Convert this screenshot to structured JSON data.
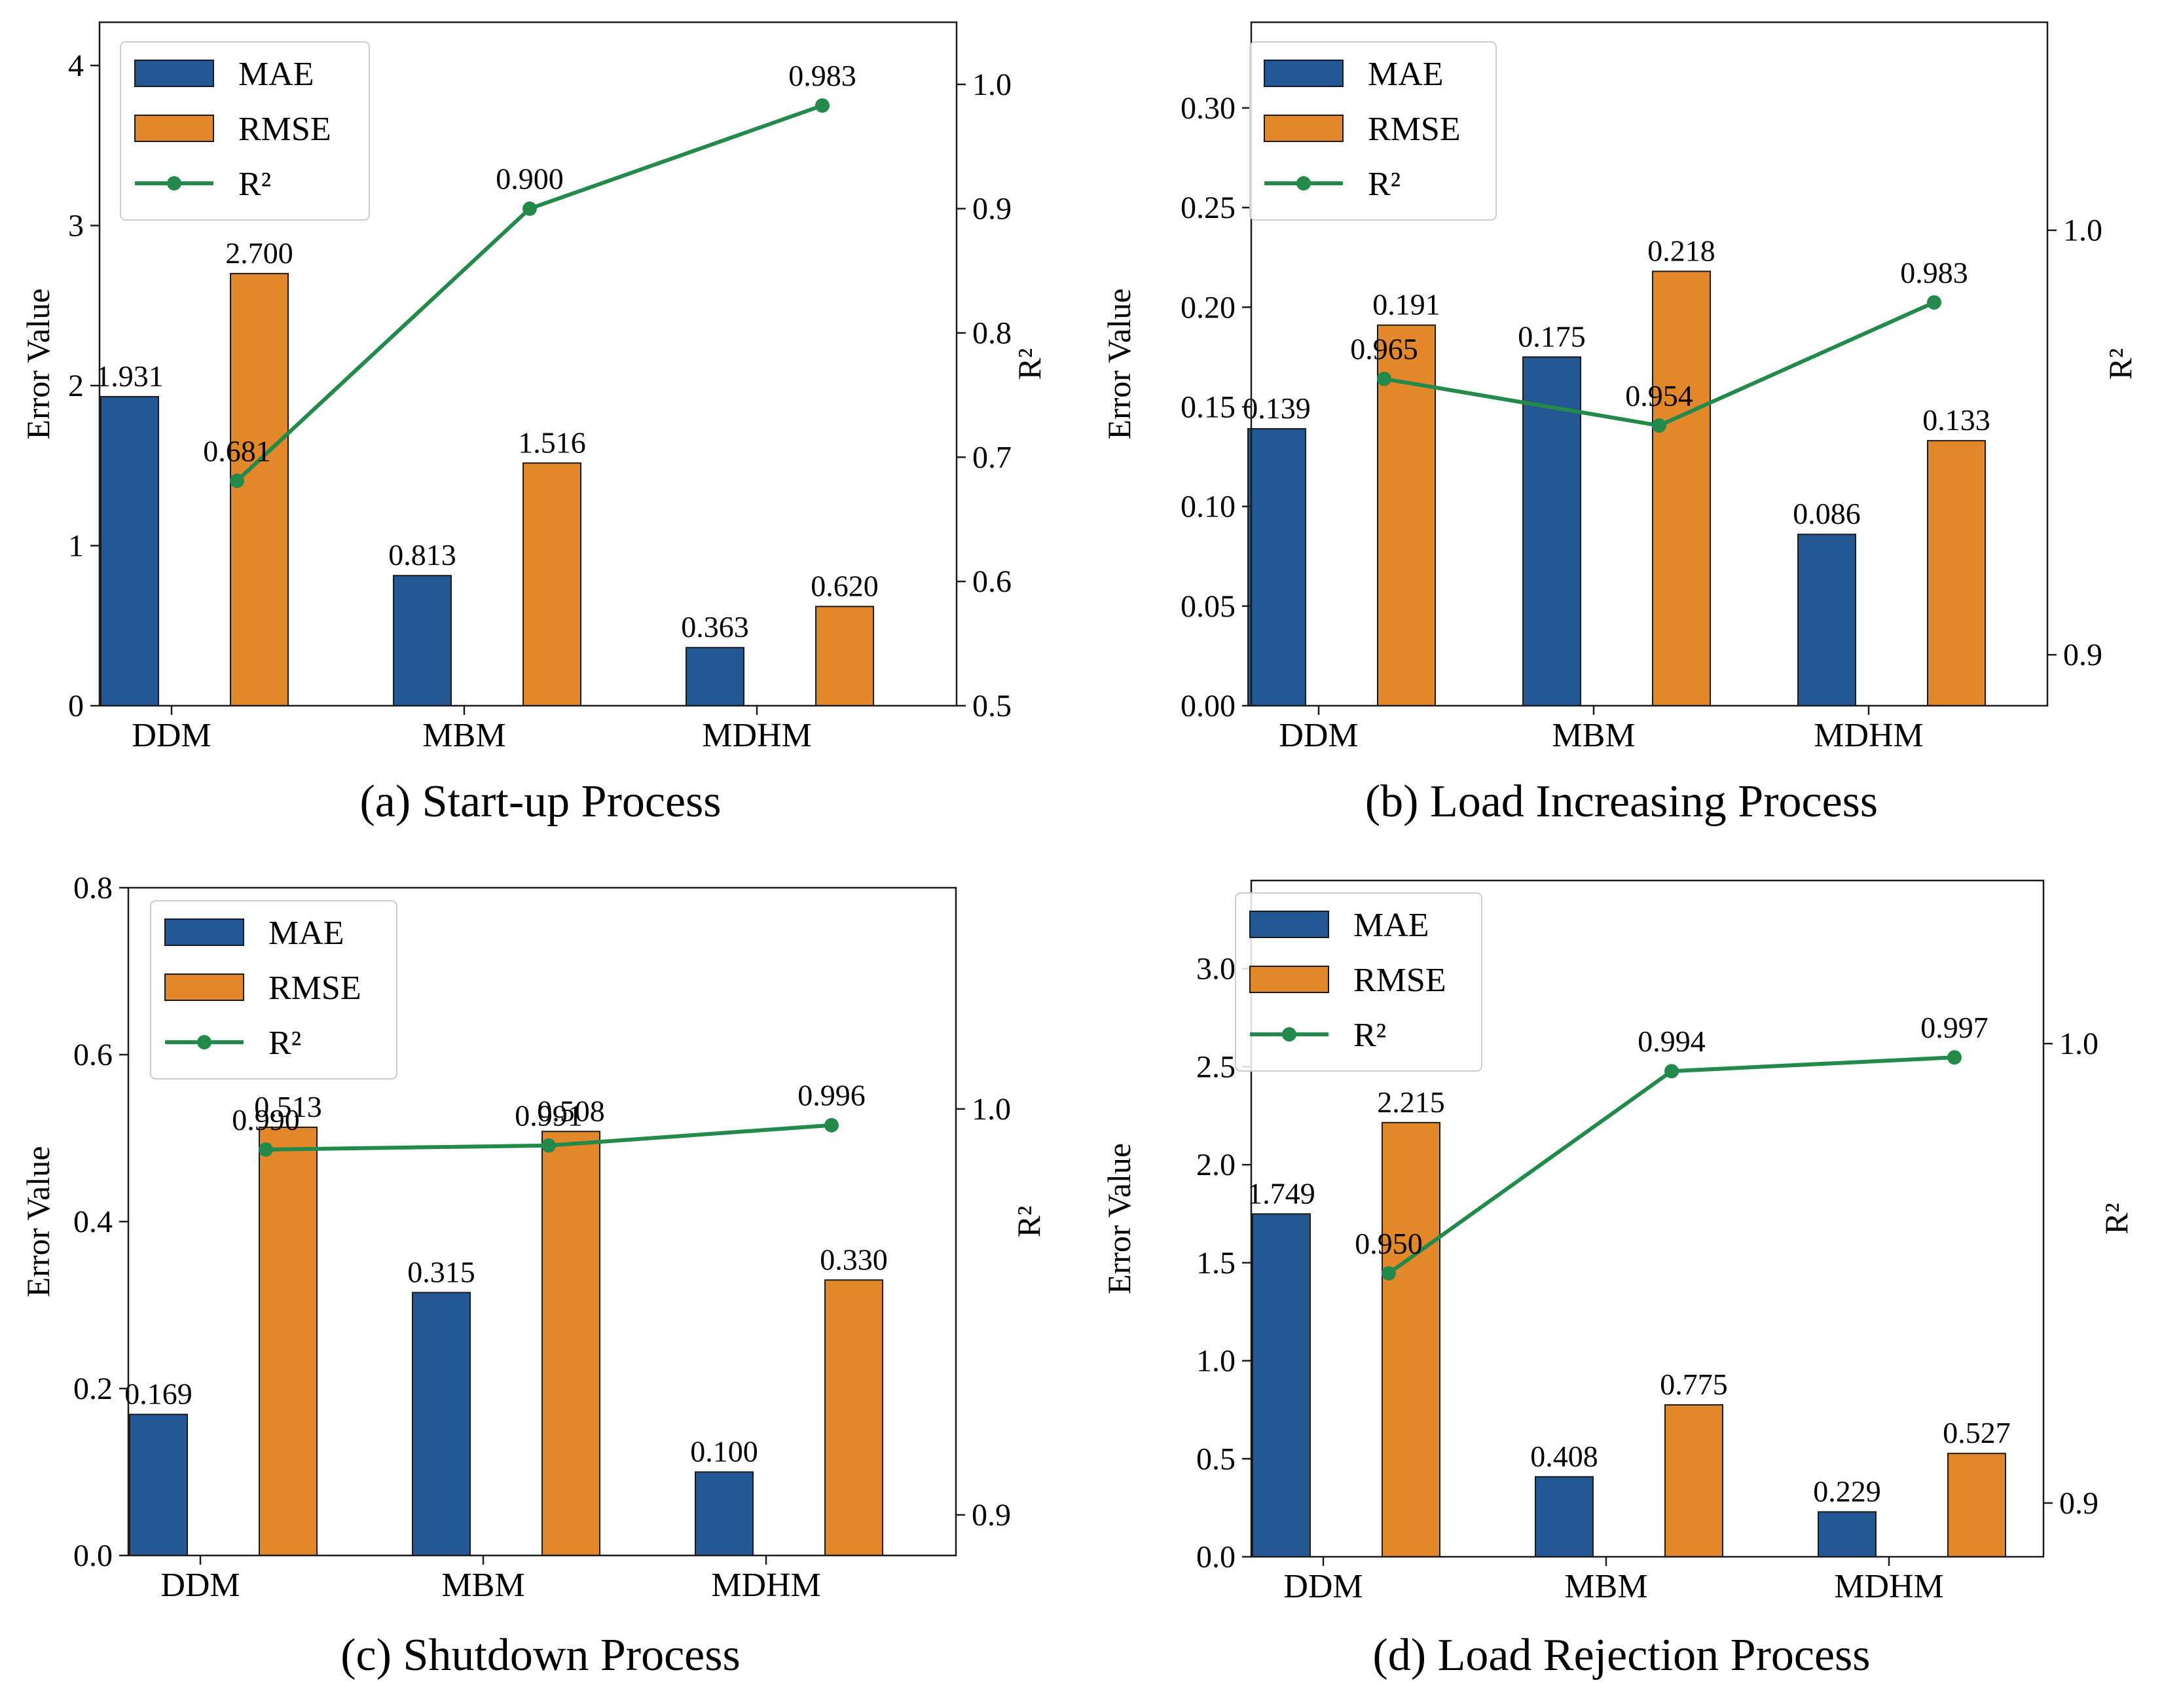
{
  "chart_data": [
    {
      "type": "bar",
      "title": "(a) Start-up Process",
      "categories": [
        "DDM",
        "MBM",
        "MDHM"
      ],
      "series": [
        {
          "name": "MAE",
          "axis": "left",
          "color": "#245894",
          "values": [
            1.931,
            0.813,
            0.363
          ],
          "labels": [
            "1.931",
            "0.813",
            "0.363"
          ]
        },
        {
          "name": "RMSE",
          "axis": "left",
          "color": "#e2882a",
          "values": [
            2.7,
            1.516,
            0.62
          ],
          "labels": [
            "2.700",
            "1.516",
            "0.620"
          ]
        },
        {
          "name": "R²",
          "type": "line",
          "axis": "right",
          "color": "#238a4c",
          "values": [
            0.681,
            0.9,
            0.983
          ],
          "labels": [
            "0.681",
            "0.900",
            "0.983"
          ]
        }
      ],
      "ylabel": "Error Value",
      "ylim": [
        0,
        4.27
      ],
      "yticks": [
        0,
        1,
        2,
        3,
        4
      ],
      "ytick_labels": [
        "0",
        "1",
        "2",
        "3",
        "4"
      ],
      "y2label": "R²",
      "y2lim": [
        0.5,
        1.05
      ],
      "y2ticks": [
        0.5,
        0.6,
        0.7,
        0.8,
        0.9,
        1.0
      ],
      "y2tick_labels": [
        "0.5",
        "0.6",
        "0.7",
        "0.8",
        "0.9",
        "1.0"
      ],
      "legend": [
        "MAE",
        "RMSE",
        "R²"
      ],
      "legend_position": "top-left"
    },
    {
      "type": "bar",
      "title": "(b) Load Increasing Process",
      "categories": [
        "DDM",
        "MBM",
        "MDHM"
      ],
      "series": [
        {
          "name": "MAE",
          "axis": "left",
          "color": "#245894",
          "values": [
            0.139,
            0.175,
            0.086
          ],
          "labels": [
            "0.139",
            "0.175",
            "0.086"
          ]
        },
        {
          "name": "RMSE",
          "axis": "left",
          "color": "#e2882a",
          "values": [
            0.191,
            0.218,
            0.133
          ],
          "labels": [
            "0.191",
            "0.218",
            "0.133"
          ]
        },
        {
          "name": "R²",
          "type": "line",
          "axis": "right",
          "color": "#238a4c",
          "values": [
            0.965,
            0.954,
            0.983
          ],
          "labels": [
            "0.965",
            "0.954",
            "0.983"
          ]
        }
      ],
      "ylabel": "Error Value",
      "ylim": [
        0,
        0.343
      ],
      "yticks": [
        0,
        0.05,
        0.1,
        0.15,
        0.2,
        0.25,
        0.3
      ],
      "ytick_labels": [
        "0.00",
        "0.05",
        "0.10",
        "0.15",
        "0.20",
        "0.25",
        "0.30"
      ],
      "y2label": "R²",
      "y2lim": [
        0.888,
        1.049
      ],
      "y2ticks": [
        0.9,
        1.0
      ],
      "y2tick_labels": [
        "0.9",
        "1.0"
      ],
      "legend": [
        "MAE",
        "RMSE",
        "R²"
      ],
      "legend_position": "top-left"
    },
    {
      "type": "bar",
      "title": "(c) Shutdown Process",
      "categories": [
        "DDM",
        "MBM",
        "MDHM"
      ],
      "series": [
        {
          "name": "MAE",
          "axis": "left",
          "color": "#245894",
          "values": [
            0.169,
            0.315,
            0.1
          ],
          "labels": [
            "0.169",
            "0.315",
            "0.100"
          ]
        },
        {
          "name": "RMSE",
          "axis": "left",
          "color": "#e2882a",
          "values": [
            0.513,
            0.508,
            0.33
          ],
          "labels": [
            "0.513",
            "0.508",
            "0.330"
          ]
        },
        {
          "name": "R²",
          "type": "line",
          "axis": "right",
          "color": "#238a4c",
          "values": [
            0.99,
            0.991,
            0.996
          ],
          "labels": [
            "0.990",
            "0.991",
            "0.996"
          ]
        }
      ],
      "ylabel": "Error Value",
      "ylim": [
        0,
        0.8
      ],
      "yticks": [
        0,
        0.2,
        0.4,
        0.6,
        0.8
      ],
      "ytick_labels": [
        "0.0",
        "0.2",
        "0.4",
        "0.6",
        "0.8"
      ],
      "y2label": "R²",
      "y2lim": [
        0.89,
        1.0545
      ],
      "y2ticks": [
        0.9,
        1.0
      ],
      "y2tick_labels": [
        "0.9",
        "1.0"
      ],
      "legend": [
        "MAE",
        "RMSE",
        "R²"
      ],
      "legend_position": "top-left"
    },
    {
      "type": "bar",
      "title": "(d) Load Rejection Process",
      "categories": [
        "DDM",
        "MBM",
        "MDHM"
      ],
      "series": [
        {
          "name": "MAE",
          "axis": "left",
          "color": "#245894",
          "values": [
            1.749,
            0.408,
            0.229
          ],
          "labels": [
            "1.749",
            "0.408",
            "0.229"
          ]
        },
        {
          "name": "RMSE",
          "axis": "left",
          "color": "#e2882a",
          "values": [
            2.215,
            0.775,
            0.527
          ],
          "labels": [
            "2.215",
            "0.775",
            "0.527"
          ]
        },
        {
          "name": "R²",
          "type": "line",
          "axis": "right",
          "color": "#238a4c",
          "values": [
            0.95,
            0.994,
            0.997
          ],
          "labels": [
            "0.950",
            "0.994",
            "0.997"
          ]
        }
      ],
      "ylabel": "Error Value",
      "ylim": [
        0,
        3.45
      ],
      "yticks": [
        0,
        0.5,
        1.0,
        1.5,
        2.0,
        2.5,
        3.0
      ],
      "ytick_labels": [
        "0.0",
        "0.5",
        "1.0",
        "1.5",
        "2.0",
        "2.5",
        "3.0"
      ],
      "y2label": "R²",
      "y2lim": [
        0.8883,
        1.0355
      ],
      "y2ticks": [
        0.9,
        1.0
      ],
      "y2tick_labels": [
        "0.9",
        "1.0"
      ],
      "legend": [
        "MAE",
        "RMSE",
        "R²"
      ],
      "legend_position": "top-left"
    }
  ]
}
